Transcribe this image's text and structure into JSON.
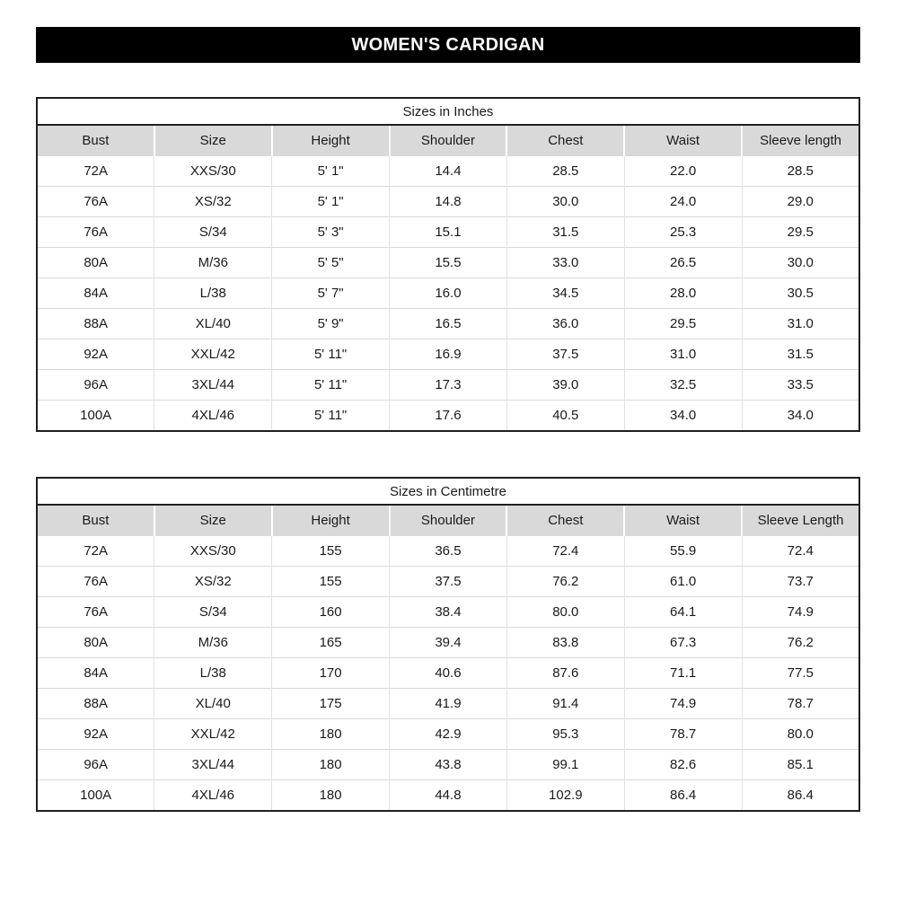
{
  "page_title": "WOMEN'S CARDIGAN",
  "colors": {
    "banner_bg": "#000000",
    "banner_text": "#ffffff",
    "header_row_bg": "#d9d9d9",
    "grid_line": "#e2e2e2",
    "outer_border": "#1f1f1f",
    "text": "#1a1a1a"
  },
  "tables": [
    {
      "id": "inches",
      "title": "Sizes in Inches",
      "columns": [
        "Bust",
        "Size",
        "Height",
        "Shoulder",
        "Chest",
        "Waist",
        "Sleeve length"
      ],
      "rows": [
        [
          "72A",
          "XXS/30",
          "5' 1\"",
          "14.4",
          "28.5",
          "22.0",
          "28.5"
        ],
        [
          "76A",
          "XS/32",
          "5' 1\"",
          "14.8",
          "30.0",
          "24.0",
          "29.0"
        ],
        [
          "76A",
          "S/34",
          "5' 3\"",
          "15.1",
          "31.5",
          "25.3",
          "29.5"
        ],
        [
          "80A",
          "M/36",
          "5' 5\"",
          "15.5",
          "33.0",
          "26.5",
          "30.0"
        ],
        [
          "84A",
          "L/38",
          "5' 7\"",
          "16.0",
          "34.5",
          "28.0",
          "30.5"
        ],
        [
          "88A",
          "XL/40",
          "5' 9\"",
          "16.5",
          "36.0",
          "29.5",
          "31.0"
        ],
        [
          "92A",
          "XXL/42",
          "5' 11\"",
          "16.9",
          "37.5",
          "31.0",
          "31.5"
        ],
        [
          "96A",
          "3XL/44",
          "5' 11\"",
          "17.3",
          "39.0",
          "32.5",
          "33.5"
        ],
        [
          "100A",
          "4XL/46",
          "5' 11\"",
          "17.6",
          "40.5",
          "34.0",
          "34.0"
        ]
      ]
    },
    {
      "id": "centimetre",
      "title": "Sizes in Centimetre",
      "columns": [
        "Bust",
        "Size",
        "Height",
        "Shoulder",
        "Chest",
        "Waist",
        "Sleeve Length"
      ],
      "rows": [
        [
          "72A",
          "XXS/30",
          "155",
          "36.5",
          "72.4",
          "55.9",
          "72.4"
        ],
        [
          "76A",
          "XS/32",
          "155",
          "37.5",
          "76.2",
          "61.0",
          "73.7"
        ],
        [
          "76A",
          "S/34",
          "160",
          "38.4",
          "80.0",
          "64.1",
          "74.9"
        ],
        [
          "80A",
          "M/36",
          "165",
          "39.4",
          "83.8",
          "67.3",
          "76.2"
        ],
        [
          "84A",
          "L/38",
          "170",
          "40.6",
          "87.6",
          "71.1",
          "77.5"
        ],
        [
          "88A",
          "XL/40",
          "175",
          "41.9",
          "91.4",
          "74.9",
          "78.7"
        ],
        [
          "92A",
          "XXL/42",
          "180",
          "42.9",
          "95.3",
          "78.7",
          "80.0"
        ],
        [
          "96A",
          "3XL/44",
          "180",
          "43.8",
          "99.1",
          "82.6",
          "85.1"
        ],
        [
          "100A",
          "4XL/46",
          "180",
          "44.8",
          "102.9",
          "86.4",
          "86.4"
        ]
      ]
    }
  ]
}
